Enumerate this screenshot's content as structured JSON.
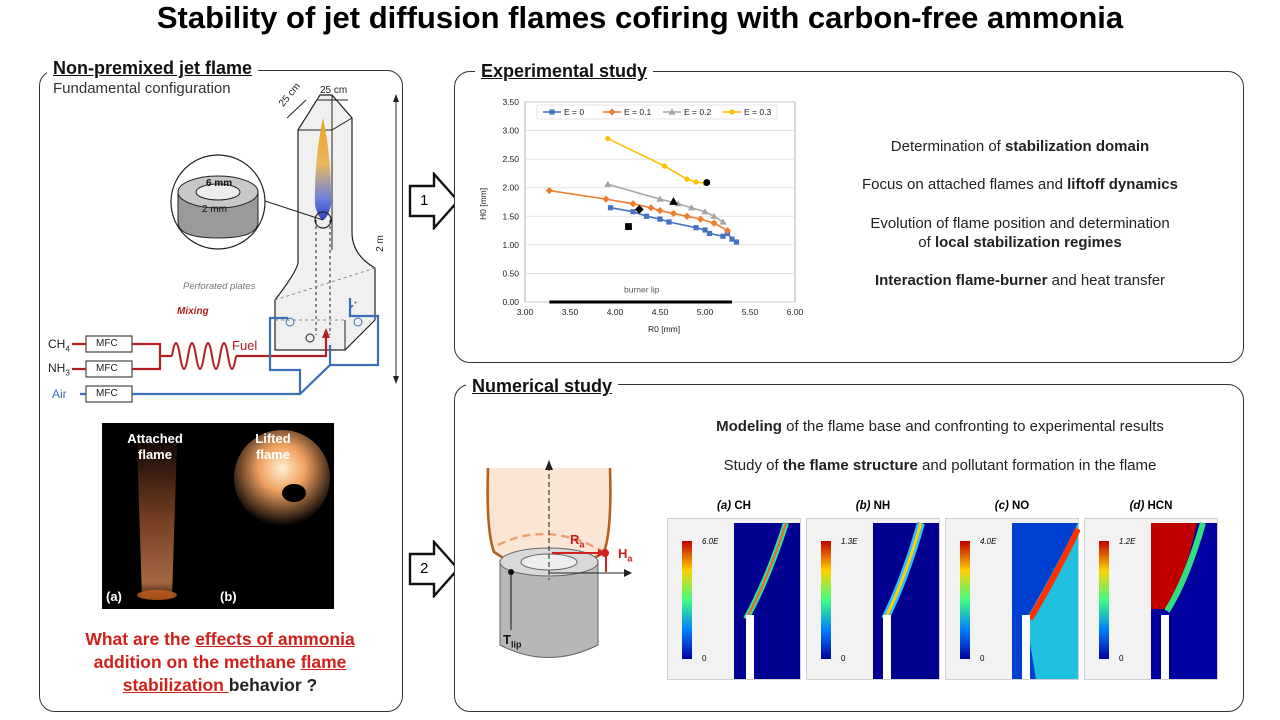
{
  "title": "Stability of jet diffusion flames cofiring with carbon-free ammonia",
  "left_panel": {
    "title": "Non-premixed jet flame",
    "subtitle": "Fundamental configuration",
    "labels": {
      "dim_25cm_a": "25 cm",
      "dim_25cm_b": "25 cm",
      "dim_2m": "2 m",
      "inner_6mm": "6 mm",
      "wall_2mm": "2 mm",
      "perforated": "Perforated plates",
      "mixing": "Mixing",
      "fuel": "Fuel",
      "ch4": "CH",
      "ch4_sub": "4",
      "nh3": "NH",
      "nh3_sub": "3",
      "air": "Air",
      "mfc": "MFC"
    },
    "photo": {
      "attached": "Attached flame",
      "lifted": "Lifted flame",
      "a": "(a)",
      "b": "(b)"
    },
    "question": {
      "p1": "What are the ",
      "p2": "effects of ammonia",
      "p3": " addition on the methane ",
      "p4": "flame",
      "p5": "stabilization ",
      "p6": "behavior ?"
    }
  },
  "experimental": {
    "title": "Experimental study",
    "step": "1",
    "bullets": [
      {
        "pre": "Determination of ",
        "bold": "stabilization domain",
        "post": ""
      },
      {
        "pre": "Focus on attached flames and ",
        "bold": "liftoff dynamics",
        "post": ""
      },
      {
        "pre": "Evolution of flame position and determination",
        "bold": "",
        "post": ""
      },
      {
        "pre": "of ",
        "bold": "local stabilization regimes",
        "post": ""
      },
      {
        "pre": "",
        "bold": "Interaction flame-burner",
        "post": " and heat transfer"
      }
    ]
  },
  "numerical": {
    "title": "Numerical study",
    "step": "2",
    "bullets": [
      {
        "pre": "",
        "bold": "Modeling",
        "post": " of the flame base and confronting to experimental results"
      },
      {
        "pre": "Study of ",
        "bold": "the flame structure",
        "post": " and pollutant formation in the flame"
      }
    ],
    "labels": {
      "ra": "R",
      "ra_sub": "a",
      "ha": "H",
      "ha_sub": "a",
      "tlip": "T",
      "tlip_sub": "lip"
    },
    "contours": [
      {
        "tag": "(a)",
        "species": "CH",
        "max": "6.0E",
        "min": "0"
      },
      {
        "tag": "(b)",
        "species": "NH",
        "max": "1.3E",
        "min": "0"
      },
      {
        "tag": "(c)",
        "species": "NO",
        "max": "4.0E",
        "min": "0"
      },
      {
        "tag": "(d)",
        "species": "HCN",
        "max": "1.2E",
        "min": "0"
      }
    ]
  },
  "chart_data": {
    "type": "line",
    "xlabel": "R",
    "xlabel_sub": "0",
    "xlabel_unit": "[mm]",
    "ylabel": "H",
    "ylabel_sub": "0",
    "ylabel_unit": "[mm]",
    "xlim": [
      3.0,
      6.0
    ],
    "ylim": [
      0.0,
      3.5
    ],
    "xticks": [
      "3.00",
      "3.50",
      "4.00",
      "4.50",
      "5.00",
      "5.50",
      "6.00"
    ],
    "yticks": [
      "0.00",
      "0.50",
      "1.00",
      "1.50",
      "2.00",
      "2.50",
      "3.00",
      "3.50"
    ],
    "grid": true,
    "legend": "top",
    "annotation": "burner lip",
    "series": [
      {
        "name": "E = 0",
        "color": "#4472c4",
        "marker": "square",
        "x": [
          3.95,
          4.2,
          4.35,
          4.5,
          4.6,
          4.9,
          5.0,
          5.05,
          5.2,
          5.25,
          5.3,
          5.35
        ],
        "y": [
          1.65,
          1.58,
          1.5,
          1.45,
          1.4,
          1.3,
          1.26,
          1.2,
          1.15,
          1.2,
          1.1,
          1.05
        ]
      },
      {
        "name": "E = 0.1",
        "color": "#ed7d31",
        "marker": "diamond",
        "x": [
          3.27,
          3.9,
          4.2,
          4.4,
          4.5,
          4.65,
          4.8,
          4.95,
          5.1,
          5.25
        ],
        "y": [
          1.95,
          1.8,
          1.72,
          1.65,
          1.6,
          1.55,
          1.5,
          1.45,
          1.38,
          1.25
        ]
      },
      {
        "name": "E = 0.2",
        "color": "#a5a5a5",
        "marker": "triangle",
        "x": [
          3.92,
          4.5,
          4.7,
          4.85,
          5.0,
          5.1,
          5.2
        ],
        "y": [
          2.06,
          1.8,
          1.72,
          1.65,
          1.58,
          1.5,
          1.4
        ]
      },
      {
        "name": "E = 0.3",
        "color": "#ffc000",
        "marker": "circle",
        "x": [
          3.92,
          4.55,
          4.8,
          4.9,
          5.0
        ],
        "y": [
          2.86,
          2.38,
          2.15,
          2.1,
          2.08
        ]
      }
    ],
    "highlight_points": [
      {
        "x": 4.15,
        "y": 1.32,
        "marker": "square"
      },
      {
        "x": 4.27,
        "y": 1.62,
        "marker": "diamond"
      },
      {
        "x": 4.65,
        "y": 1.76,
        "marker": "triangle"
      },
      {
        "x": 5.02,
        "y": 2.09,
        "marker": "circle"
      }
    ]
  }
}
